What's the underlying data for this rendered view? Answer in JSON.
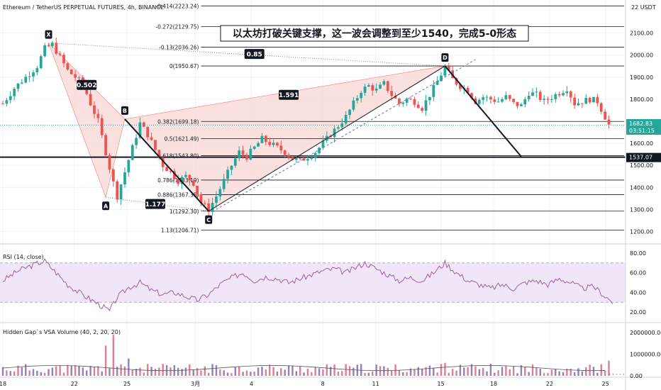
{
  "header": {
    "symbol_line": "Ethereum / TetherUS PERPETUAL FUTURES, 4h, BINANCE",
    "currency": "22 USDT"
  },
  "annotation": {
    "title": "以太坊打破关键支撑，这一波会调整到至少1540，完成5-0形态"
  },
  "colors": {
    "up": "#26a69a",
    "down": "#ef5350",
    "pattern_fill": "#f8d7d4",
    "rsi": "#9c5fa3",
    "rsi_band": "#f1e6f7",
    "accent": "#131722"
  },
  "chart_data": [
    {
      "type": "candlestick",
      "title": "Ethereum / TetherUS PERPETUAL FUTURES, 4h, BINANCE",
      "yunit": "USDT",
      "ylim": [
        1150,
        2250
      ],
      "y_ticks": [
        1200,
        1300,
        1400,
        1500,
        1600,
        1700,
        1800,
        1900,
        2000,
        2100
      ],
      "y_tick_labels": [
        "1200.00",
        "1300.00",
        "1400.00",
        "1500.00",
        "1600.00",
        "1700.00",
        "1800.00",
        "1900.00",
        "2000.00",
        "2100.00"
      ],
      "x_tick_labels": [
        "18",
        "22",
        "25",
        "3月",
        "4",
        "8",
        "11",
        "15",
        "18",
        "22",
        "25"
      ],
      "last_price": "1682.83",
      "countdown": "03:51:15",
      "support_label": "1537.07",
      "support_value": 1537.07,
      "close_path": [
        [
          0,
          1780
        ],
        [
          3,
          1850
        ],
        [
          6,
          1900
        ],
        [
          9,
          1950
        ],
        [
          11,
          2030
        ],
        [
          13,
          2048
        ],
        [
          15,
          1990
        ],
        [
          17,
          1930
        ],
        [
          19,
          1900
        ],
        [
          21,
          1870
        ],
        [
          23,
          1780
        ],
        [
          25,
          1700
        ],
        [
          27,
          1560
        ],
        [
          29,
          1420
        ],
        [
          30,
          1360
        ],
        [
          32,
          1470
        ],
        [
          34,
          1580
        ],
        [
          36,
          1690
        ],
        [
          38,
          1640
        ],
        [
          40,
          1570
        ],
        [
          42,
          1500
        ],
        [
          44,
          1470
        ],
        [
          46,
          1430
        ],
        [
          48,
          1450
        ],
        [
          50,
          1420
        ],
        [
          52,
          1330
        ],
        [
          54,
          1300
        ],
        [
          56,
          1360
        ],
        [
          58,
          1430
        ],
        [
          60,
          1500
        ],
        [
          62,
          1560
        ],
        [
          64,
          1540
        ],
        [
          66,
          1580
        ],
        [
          68,
          1620
        ],
        [
          70,
          1600
        ],
        [
          72,
          1580
        ],
        [
          74,
          1560
        ],
        [
          76,
          1530
        ],
        [
          78,
          1520
        ],
        [
          80,
          1540
        ],
        [
          82,
          1560
        ],
        [
          84,
          1600
        ],
        [
          86,
          1640
        ],
        [
          88,
          1680
        ],
        [
          90,
          1720
        ],
        [
          92,
          1780
        ],
        [
          94,
          1840
        ],
        [
          96,
          1860
        ],
        [
          98,
          1840
        ],
        [
          100,
          1870
        ],
        [
          102,
          1820
        ],
        [
          104,
          1780
        ],
        [
          106,
          1800
        ],
        [
          108,
          1790
        ],
        [
          110,
          1760
        ],
        [
          112,
          1820
        ],
        [
          114,
          1880
        ],
        [
          116,
          1945
        ],
        [
          118,
          1890
        ],
        [
          120,
          1860
        ],
        [
          122,
          1840
        ],
        [
          124,
          1790
        ],
        [
          126,
          1810
        ],
        [
          128,
          1800
        ],
        [
          130,
          1790
        ],
        [
          132,
          1810
        ],
        [
          134,
          1780
        ],
        [
          136,
          1770
        ],
        [
          138,
          1830
        ],
        [
          140,
          1820
        ],
        [
          142,
          1790
        ],
        [
          144,
          1810
        ],
        [
          146,
          1830
        ],
        [
          148,
          1850
        ],
        [
          150,
          1780
        ],
        [
          152,
          1790
        ],
        [
          154,
          1800
        ],
        [
          156,
          1790
        ],
        [
          158,
          1720
        ],
        [
          159,
          1683
        ]
      ],
      "harmonic_points": [
        {
          "label": "X",
          "bar": 12,
          "price": 2055
        },
        {
          "label": "A",
          "bar": 27,
          "price": 1355
        },
        {
          "label": "B",
          "bar": 32,
          "price": 1710
        },
        {
          "label": "C",
          "bar": 54,
          "price": 1292.3
        },
        {
          "label": "D",
          "bar": 116,
          "price": 1950.67
        }
      ],
      "ratios": [
        {
          "text": "0.502",
          "bar": 22,
          "price": 1865
        },
        {
          "text": "1.177",
          "bar": 40,
          "price": 1325
        },
        {
          "text": "1.591",
          "bar": 75,
          "price": 1820
        },
        {
          "text": "0.85",
          "bar": 66,
          "price": 2005
        }
      ],
      "fib_levels": [
        {
          "label": "-0.414(2223.24)",
          "value": 2223.24
        },
        {
          "label": "-0.272(2129.75)",
          "value": 2129.75
        },
        {
          "label": "-0.13(2036.26)",
          "value": 2036.26
        },
        {
          "label": "0(1950.67)",
          "value": 1950.67
        },
        {
          "label": "0.382(1699.18)",
          "value": 1699.18
        },
        {
          "label": "0.5(1621.49)",
          "value": 1621.49
        },
        {
          "label": "0.618(1543.80)",
          "value": 1543.8
        },
        {
          "label": "0.786(1433.19)",
          "value": 1433.19
        },
        {
          "label": "0.886(1367.35)",
          "value": 1367.35
        },
        {
          "label": "1(1292.30)",
          "value": 1292.3
        },
        {
          "label": "1.13(1206.71)",
          "value": 1206.71
        }
      ],
      "projection": {
        "from_bar": 116,
        "from_price": 1950.67,
        "to_bar": 136,
        "to_price": 1540
      }
    },
    {
      "type": "line",
      "title": "RSI (14, close)",
      "ylim": [
        15,
        85
      ],
      "y_ticks": [
        80,
        60,
        40,
        20
      ],
      "y_tick_labels": [
        "80.00",
        "60.00",
        "40.00",
        "20.00"
      ],
      "band": [
        30,
        70
      ],
      "values_path": [
        [
          0,
          52
        ],
        [
          4,
          62
        ],
        [
          8,
          68
        ],
        [
          11,
          72
        ],
        [
          14,
          60
        ],
        [
          17,
          48
        ],
        [
          20,
          40
        ],
        [
          23,
          33
        ],
        [
          26,
          26
        ],
        [
          28,
          21
        ],
        [
          30,
          35
        ],
        [
          33,
          45
        ],
        [
          36,
          50
        ],
        [
          39,
          42
        ],
        [
          42,
          38
        ],
        [
          45,
          40
        ],
        [
          48,
          36
        ],
        [
          51,
          32
        ],
        [
          54,
          38
        ],
        [
          57,
          48
        ],
        [
          60,
          55
        ],
        [
          63,
          60
        ],
        [
          66,
          52
        ],
        [
          69,
          56
        ],
        [
          72,
          54
        ],
        [
          75,
          50
        ],
        [
          78,
          54
        ],
        [
          81,
          58
        ],
        [
          84,
          62
        ],
        [
          87,
          64
        ],
        [
          90,
          60
        ],
        [
          93,
          66
        ],
        [
          95,
          70
        ],
        [
          98,
          64
        ],
        [
          101,
          58
        ],
        [
          104,
          52
        ],
        [
          107,
          55
        ],
        [
          110,
          52
        ],
        [
          113,
          60
        ],
        [
          116,
          70
        ],
        [
          119,
          60
        ],
        [
          122,
          52
        ],
        [
          125,
          48
        ],
        [
          128,
          44
        ],
        [
          131,
          48
        ],
        [
          134,
          44
        ],
        [
          137,
          50
        ],
        [
          140,
          52
        ],
        [
          143,
          48
        ],
        [
          146,
          54
        ],
        [
          149,
          50
        ],
        [
          152,
          44
        ],
        [
          155,
          46
        ],
        [
          158,
          36
        ],
        [
          160,
          30
        ]
      ]
    },
    {
      "type": "bar",
      "title": "Hidden Gap`s VSA Volume (40, 2, 20, 20)",
      "ylim": [
        0,
        2300000
      ],
      "y_ticks": [
        2000000,
        1000000,
        0
      ],
      "y_tick_labels": [
        "2000000.00",
        "1000000.00",
        "0.00"
      ],
      "spikes": [
        {
          "bar": 27,
          "value": 1400000
        },
        {
          "bar": 29,
          "value": 1900000
        },
        {
          "bar": 33,
          "value": 800000
        },
        {
          "bar": 116,
          "value": 600000
        },
        {
          "bar": 159,
          "value": 700000
        }
      ],
      "baseline": 400000
    }
  ]
}
